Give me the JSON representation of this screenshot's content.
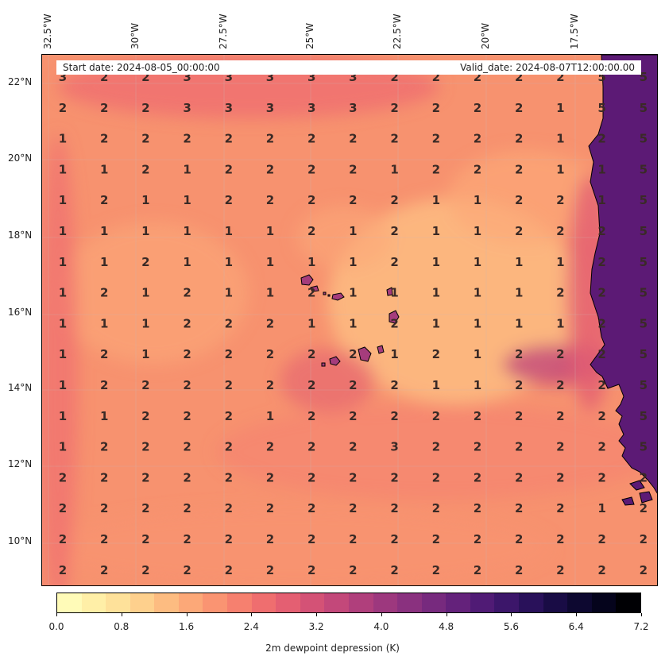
{
  "header": {
    "start_date": "Start date: 2024-08-05_00:00:00",
    "valid_date": "Valid_date: 2024-08-07T12:00:00.00"
  },
  "map": {
    "lon_labels": [
      "32.5°W",
      "30°W",
      "27.5°W",
      "25°W",
      "22.5°W",
      "20°W",
      "17.5°W"
    ],
    "lat_labels": [
      "22°N",
      "20°N",
      "18°N",
      "16°N",
      "14°N",
      "12°N",
      "10°N"
    ],
    "land_color": "#5c1a75",
    "coastline_color": "#000000",
    "value_grid": [
      [
        "3",
        "2",
        "2",
        "3",
        "3",
        "3",
        "3",
        "3",
        "2",
        "2",
        "2",
        "2",
        "2",
        "5",
        "5"
      ],
      [
        "2",
        "2",
        "2",
        "3",
        "3",
        "3",
        "3",
        "3",
        "2",
        "2",
        "2",
        "2",
        "1",
        "5",
        "5"
      ],
      [
        "1",
        "2",
        "2",
        "2",
        "2",
        "2",
        "2",
        "2",
        "2",
        "2",
        "2",
        "2",
        "1",
        "2",
        "5"
      ],
      [
        "1",
        "1",
        "2",
        "1",
        "2",
        "2",
        "2",
        "2",
        "1",
        "2",
        "2",
        "2",
        "1",
        "1",
        "5"
      ],
      [
        "1",
        "2",
        "1",
        "1",
        "2",
        "2",
        "2",
        "2",
        "2",
        "1",
        "1",
        "2",
        "2",
        "1",
        "5"
      ],
      [
        "1",
        "1",
        "1",
        "1",
        "1",
        "1",
        "2",
        "1",
        "2",
        "1",
        "1",
        "2",
        "2",
        "2",
        "5"
      ],
      [
        "1",
        "1",
        "2",
        "1",
        "1",
        "1",
        "1",
        "1",
        "2",
        "1",
        "1",
        "1",
        "1",
        "2",
        "5"
      ],
      [
        "1",
        "2",
        "1",
        "2",
        "1",
        "1",
        "2",
        "1",
        "1",
        "1",
        "1",
        "1",
        "2",
        "2",
        "5"
      ],
      [
        "1",
        "1",
        "1",
        "2",
        "2",
        "2",
        "1",
        "1",
        "2",
        "1",
        "1",
        "1",
        "1",
        "2",
        "5"
      ],
      [
        "1",
        "2",
        "1",
        "2",
        "2",
        "2",
        "2",
        "2",
        "1",
        "2",
        "1",
        "2",
        "2",
        "2",
        "5"
      ],
      [
        "1",
        "2",
        "2",
        "2",
        "2",
        "2",
        "2",
        "2",
        "2",
        "1",
        "1",
        "2",
        "2",
        "2",
        "5"
      ],
      [
        "1",
        "1",
        "2",
        "2",
        "2",
        "1",
        "2",
        "2",
        "2",
        "2",
        "2",
        "2",
        "2",
        "2",
        "5"
      ],
      [
        "1",
        "2",
        "2",
        "2",
        "2",
        "2",
        "2",
        "2",
        "3",
        "2",
        "2",
        "2",
        "2",
        "2",
        "5"
      ],
      [
        "2",
        "2",
        "2",
        "2",
        "2",
        "2",
        "2",
        "2",
        "2",
        "2",
        "2",
        "2",
        "2",
        "2",
        "2"
      ],
      [
        "2",
        "2",
        "2",
        "2",
        "2",
        "2",
        "2",
        "2",
        "2",
        "2",
        "2",
        "2",
        "2",
        "1",
        "2"
      ],
      [
        "2",
        "2",
        "2",
        "2",
        "2",
        "2",
        "2",
        "2",
        "2",
        "2",
        "2",
        "2",
        "2",
        "2",
        "2"
      ],
      [
        "2",
        "2",
        "2",
        "2",
        "2",
        "2",
        "2",
        "2",
        "2",
        "2",
        "2",
        "2",
        "2",
        "2",
        "2"
      ]
    ]
  },
  "colorbar": {
    "label": "2m dewpoint depression (K)",
    "ticks": [
      "0.0",
      "0.8",
      "1.6",
      "2.4",
      "3.2",
      "4.0",
      "4.8",
      "5.6",
      "6.4",
      "7.2"
    ],
    "colors": [
      "#fffbb8",
      "#ffefa7",
      "#fee19a",
      "#fed08d",
      "#fdbc81",
      "#fca878",
      "#fa9472",
      "#f6806f",
      "#ef6e6f",
      "#e45f72",
      "#d45276",
      "#c3487a",
      "#b03f7c",
      "#9d387e",
      "#8a317f",
      "#772a7e",
      "#64227b",
      "#501b75",
      "#3c166a",
      "#29115a",
      "#190c45",
      "#0d0830",
      "#05041c",
      "#000004"
    ]
  }
}
